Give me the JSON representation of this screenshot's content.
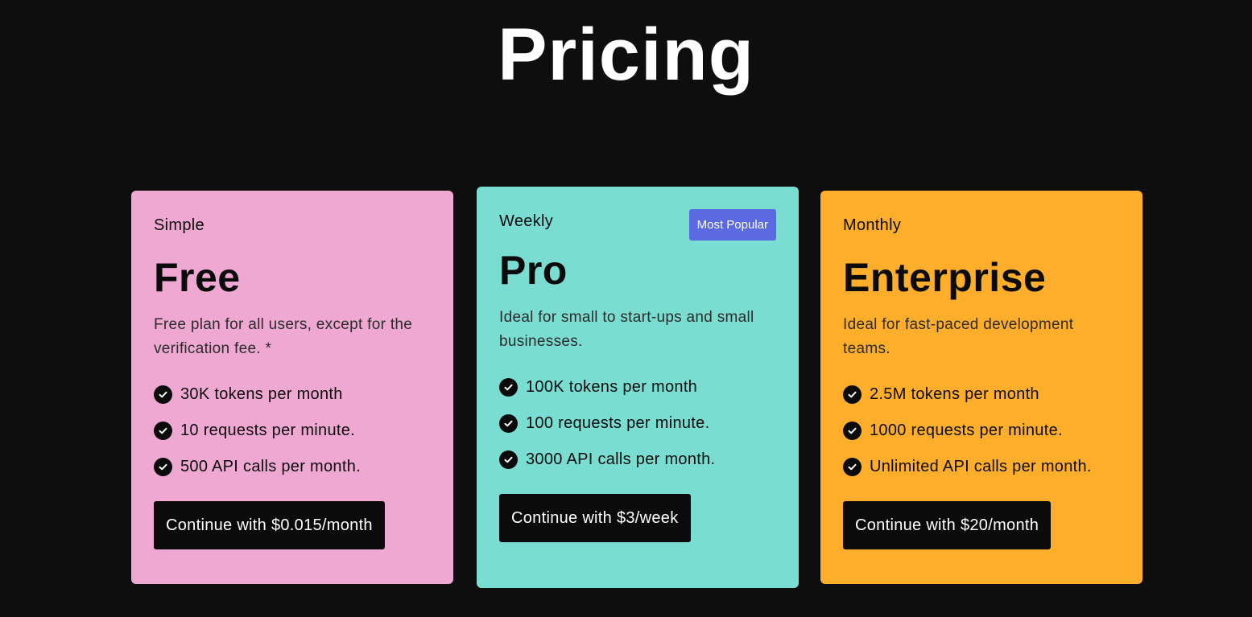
{
  "header": {
    "title": "Pricing"
  },
  "colors": {
    "background": "#0f0e0f",
    "simple_card": "#efa8d2",
    "weekly_card": "#79ddd1",
    "monthly_card": "#ffae2b",
    "badge": "#5b6ae0",
    "button": "#0b0b0b"
  },
  "plans": {
    "simple": {
      "tier": "Simple",
      "title": "Free",
      "description": "Free plan for all users, except for the verification fee. *",
      "features": [
        "30K tokens per month",
        "10 requests per minute.",
        "500 API calls per month."
      ],
      "cta": "Continue with $0.015/month"
    },
    "weekly": {
      "tier": "Weekly",
      "badge": "Most Popular",
      "title": "Pro",
      "description": "Ideal for small to start-ups and small businesses.",
      "features": [
        "100K tokens per month",
        "100 requests per minute.",
        "3000 API calls per month."
      ],
      "cta": "Continue with $3/week"
    },
    "monthly": {
      "tier": "Monthly",
      "title": "Enterprise",
      "description": "Ideal for fast-paced development teams.",
      "features": [
        "2.5M tokens per month",
        "1000 requests per minute.",
        "Unlimited API calls per month."
      ],
      "cta": "Continue with $20/month"
    }
  }
}
